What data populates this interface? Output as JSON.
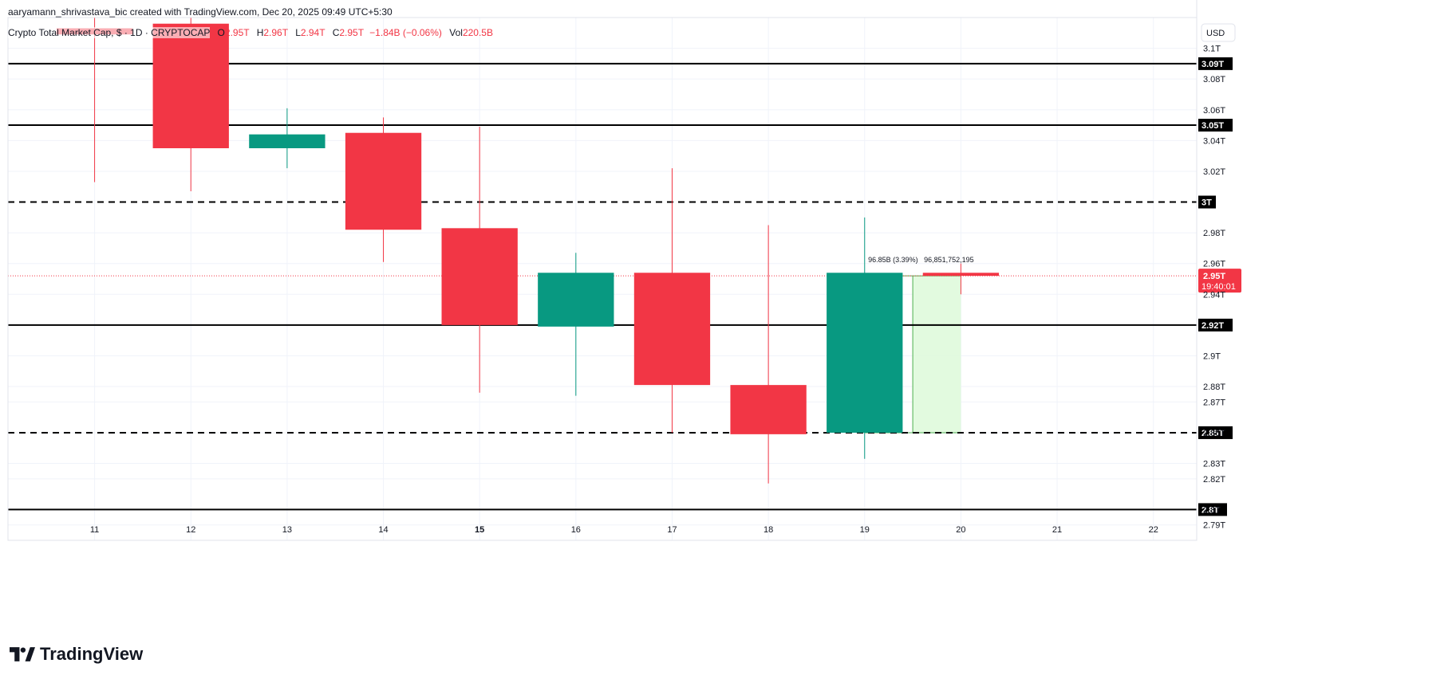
{
  "header": {
    "attribution": "aaryamann_shrivastava_bic created with TradingView.com, Dec 20, 2025 09:49 UTC+5:30"
  },
  "legend": {
    "symbol": "Crypto Total Market Cap, $ · 1D · CRYPTOCAP",
    "o_label": "O",
    "o_value": "2.95T",
    "h_label": "H",
    "h_value": "2.96T",
    "l_label": "L",
    "l_value": "2.94T",
    "c_label": "C",
    "c_value": "2.95T",
    "change": "−1.84B (−0.06%)",
    "vol_label": "Vol",
    "vol_value": "220.5B"
  },
  "brand": {
    "name": "TradingView"
  },
  "colors": {
    "up": "#089981",
    "down": "#f23645",
    "level_line": "#000000",
    "measure_fill": "#dff9dc",
    "measure_line": "#4caf50",
    "grid": "#f0f3fa"
  },
  "chart_data": {
    "type": "candlestick",
    "currency_label": "USD",
    "ylim": [
      2.78,
      3.12
    ],
    "x_range": [
      10.1,
      22.45
    ],
    "x_ticks": [
      {
        "value": 11,
        "label": "11",
        "bold": false
      },
      {
        "value": 12,
        "label": "12",
        "bold": false
      },
      {
        "value": 13,
        "label": "13",
        "bold": false
      },
      {
        "value": 14,
        "label": "14",
        "bold": false
      },
      {
        "value": 15,
        "label": "15",
        "bold": true
      },
      {
        "value": 16,
        "label": "16",
        "bold": false
      },
      {
        "value": 17,
        "label": "17",
        "bold": false
      },
      {
        "value": 18,
        "label": "18",
        "bold": false
      },
      {
        "value": 19,
        "label": "19",
        "bold": false
      },
      {
        "value": 20,
        "label": "20",
        "bold": false
      },
      {
        "value": 21,
        "label": "21",
        "bold": false
      },
      {
        "value": 22,
        "label": "22",
        "bold": false
      }
    ],
    "y_ticks": [
      {
        "value": 3.1,
        "label": "3.1T"
      },
      {
        "value": 3.08,
        "label": "3.08T"
      },
      {
        "value": 3.06,
        "label": "3.06T"
      },
      {
        "value": 3.04,
        "label": "3.04T"
      },
      {
        "value": 3.02,
        "label": "3.02T"
      },
      {
        "value": 2.98,
        "label": "2.98T"
      },
      {
        "value": 2.96,
        "label": "2.96T"
      },
      {
        "value": 2.94,
        "label": "2.94T"
      },
      {
        "value": 2.9,
        "label": "2.9T"
      },
      {
        "value": 2.88,
        "label": "2.88T"
      },
      {
        "value": 2.87,
        "label": "2.87T"
      },
      {
        "value": 2.85,
        "label": "2.85T"
      },
      {
        "value": 2.83,
        "label": "2.83T"
      },
      {
        "value": 2.82,
        "label": "2.82T"
      },
      {
        "value": 2.8,
        "label": "2.8T"
      },
      {
        "value": 2.79,
        "label": "2.79T"
      }
    ],
    "candles": [
      {
        "day": 11,
        "open": 3.113,
        "high": 3.12,
        "low": 3.013,
        "close": 3.109
      },
      {
        "day": 12,
        "open": 3.116,
        "high": 3.12,
        "low": 3.007,
        "close": 3.035
      },
      {
        "day": 13,
        "open": 3.035,
        "high": 3.061,
        "low": 3.022,
        "close": 3.044
      },
      {
        "day": 14,
        "open": 3.045,
        "high": 3.055,
        "low": 2.961,
        "close": 2.982
      },
      {
        "day": 15,
        "open": 2.983,
        "high": 3.049,
        "low": 2.876,
        "close": 2.92
      },
      {
        "day": 16,
        "open": 2.919,
        "high": 2.967,
        "low": 2.874,
        "close": 2.954
      },
      {
        "day": 17,
        "open": 2.954,
        "high": 3.022,
        "low": 2.85,
        "close": 2.881
      },
      {
        "day": 18,
        "open": 2.881,
        "high": 2.985,
        "low": 2.817,
        "close": 2.849
      },
      {
        "day": 19,
        "open": 2.85,
        "high": 2.99,
        "low": 2.833,
        "close": 2.954
      },
      {
        "day": 20,
        "open": 2.954,
        "high": 2.96,
        "low": 2.94,
        "close": 2.952
      }
    ],
    "levels": [
      {
        "value": 3.09,
        "label": "3.09T",
        "style": "solid"
      },
      {
        "value": 3.05,
        "label": "3.05T",
        "style": "solid"
      },
      {
        "value": 3.0,
        "label": "3T",
        "style": "dashed"
      },
      {
        "value": 2.92,
        "label": "2.92T",
        "style": "solid"
      },
      {
        "value": 2.85,
        "label": "2.85T",
        "style": "dashed"
      },
      {
        "value": 2.8,
        "label": "2.8T",
        "style": "solid"
      }
    ],
    "current_price": {
      "value": 2.952,
      "label": "2.95T",
      "countdown": "19:40:01"
    },
    "measure": {
      "x_start": 19.5,
      "x_end": 20.0,
      "y_low": 2.85,
      "y_high": 2.952,
      "label_change": "96.85B (3.39%)",
      "label_value": "96,851,752,195"
    }
  }
}
